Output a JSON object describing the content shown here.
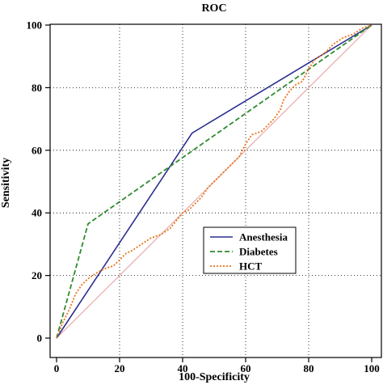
{
  "chart_data": {
    "type": "line",
    "title": "ROC",
    "xlabel": "100-Specificity",
    "ylabel": "Sensitivity",
    "xlim": [
      0,
      100
    ],
    "ylim": [
      0,
      100
    ],
    "xticks": [
      "0",
      "20",
      "40",
      "60",
      "80",
      "100"
    ],
    "yticks": [
      "0",
      "20",
      "40",
      "60",
      "80",
      "100"
    ],
    "grid": true,
    "legend_position": "center-right",
    "reference_line": {
      "color": "#e8a9a9",
      "points": [
        [
          0,
          0
        ],
        [
          100,
          100
        ]
      ]
    },
    "series": [
      {
        "name": "Anesthesia",
        "color": "#2b2f8f",
        "style": "solid",
        "points": [
          [
            0,
            0
          ],
          [
            43,
            65.5
          ],
          [
            100,
            100
          ]
        ]
      },
      {
        "name": "Diabetes",
        "color": "#2e8b2e",
        "style": "dashed",
        "points": [
          [
            0,
            0
          ],
          [
            10,
            36.5
          ],
          [
            100,
            100
          ]
        ]
      },
      {
        "name": "HCT",
        "color": "#e8741a",
        "style": "dotted",
        "points": [
          [
            0,
            0
          ],
          [
            2,
            5
          ],
          [
            4,
            9
          ],
          [
            6,
            14
          ],
          [
            8,
            17
          ],
          [
            10,
            19
          ],
          [
            13,
            21
          ],
          [
            16,
            22.5
          ],
          [
            18,
            23
          ],
          [
            20,
            25
          ],
          [
            22,
            27
          ],
          [
            24,
            28
          ],
          [
            27,
            30
          ],
          [
            30,
            32
          ],
          [
            33,
            33
          ],
          [
            36,
            35
          ],
          [
            38,
            37.5
          ],
          [
            40,
            40
          ],
          [
            42,
            41
          ],
          [
            44,
            43
          ],
          [
            46,
            45
          ],
          [
            48,
            48
          ],
          [
            50,
            50
          ],
          [
            52,
            52
          ],
          [
            54,
            54
          ],
          [
            56,
            56
          ],
          [
            58,
            58
          ],
          [
            60,
            62
          ],
          [
            62,
            65
          ],
          [
            65,
            66
          ],
          [
            67,
            68
          ],
          [
            69,
            70
          ],
          [
            71,
            73
          ],
          [
            72,
            76
          ],
          [
            74,
            79
          ],
          [
            76,
            81
          ],
          [
            78,
            82
          ],
          [
            80,
            86
          ],
          [
            82,
            89
          ],
          [
            85,
            91
          ],
          [
            88,
            94
          ],
          [
            91,
            96
          ],
          [
            94,
            97
          ],
          [
            97,
            99
          ],
          [
            100,
            100
          ]
        ]
      }
    ]
  }
}
